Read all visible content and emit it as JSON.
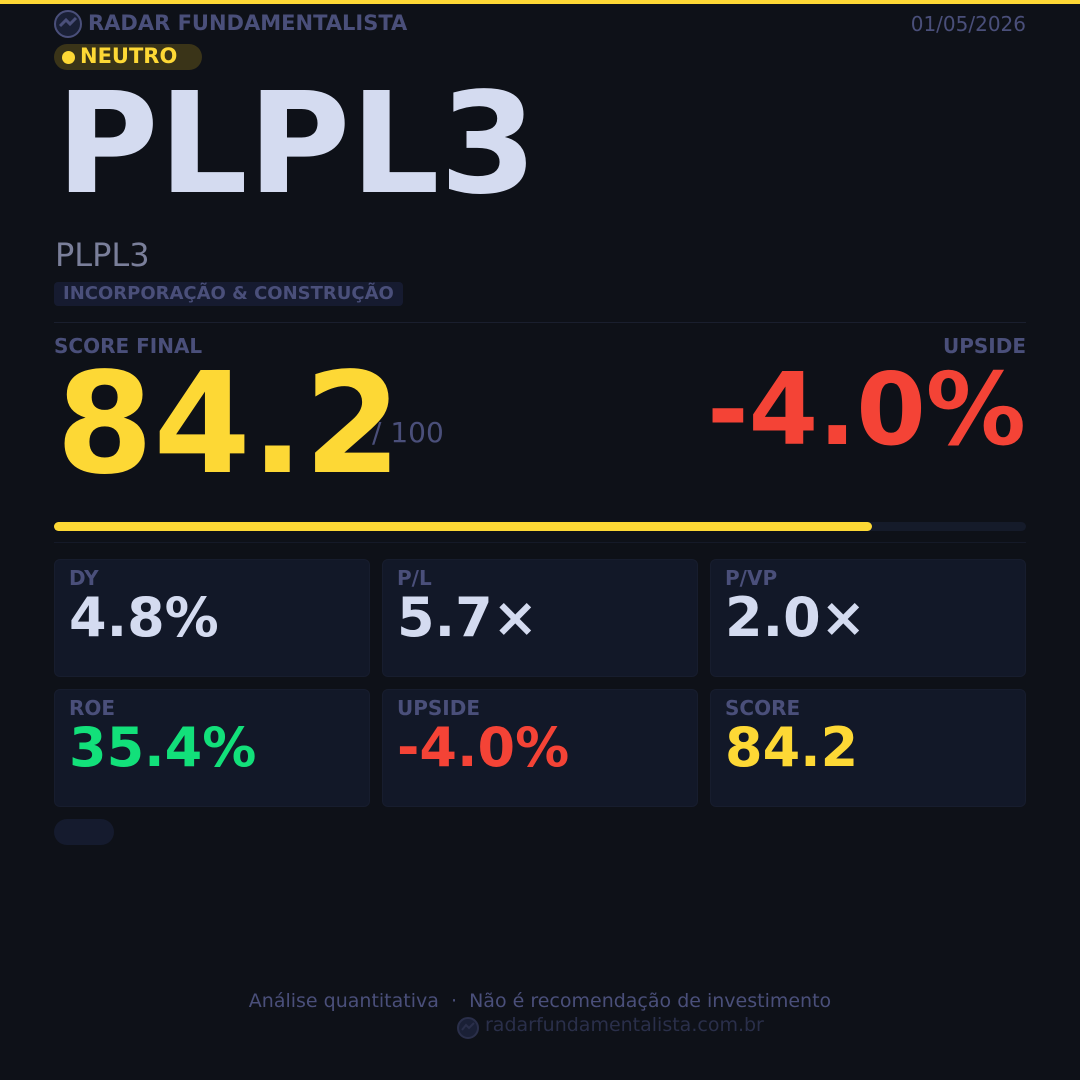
{
  "header": {
    "brand": "RADAR FUNDAMENTALISTA",
    "date": "01/05/2026",
    "badge": "NEUTRO"
  },
  "ticker": "PLPL3",
  "company_name": "PLPL3",
  "sector": "INCORPORAÇÃO & CONSTRUÇÃO",
  "score": {
    "label": "SCORE FINAL",
    "value": 84.2,
    "max_label": "/ 100",
    "color": "#fdd835"
  },
  "upside": {
    "label": "UPSIDE",
    "value": "-4.0%",
    "color": "#f44336"
  },
  "metrics": [
    {
      "label": "DY",
      "value": "4.8%",
      "color": "#d4dbf0"
    },
    {
      "label": "P/L",
      "value": "5.7×",
      "color": "#d4dbf0"
    },
    {
      "label": "P/VP",
      "value": "2.0×",
      "color": "#d4dbf0"
    },
    {
      "label": "ROE",
      "value": "35.4%",
      "color": "#12e07a"
    },
    {
      "label": "UPSIDE",
      "value": "-4.0%",
      "color": "#f44336"
    },
    {
      "label": "SCORE",
      "value": "84.2",
      "color": "#fdd835"
    }
  ],
  "footer": {
    "disclaimer": "Análise quantitativa  ·  Não é recomendação de investimento",
    "site": "radarfundamentalista.com.br"
  }
}
